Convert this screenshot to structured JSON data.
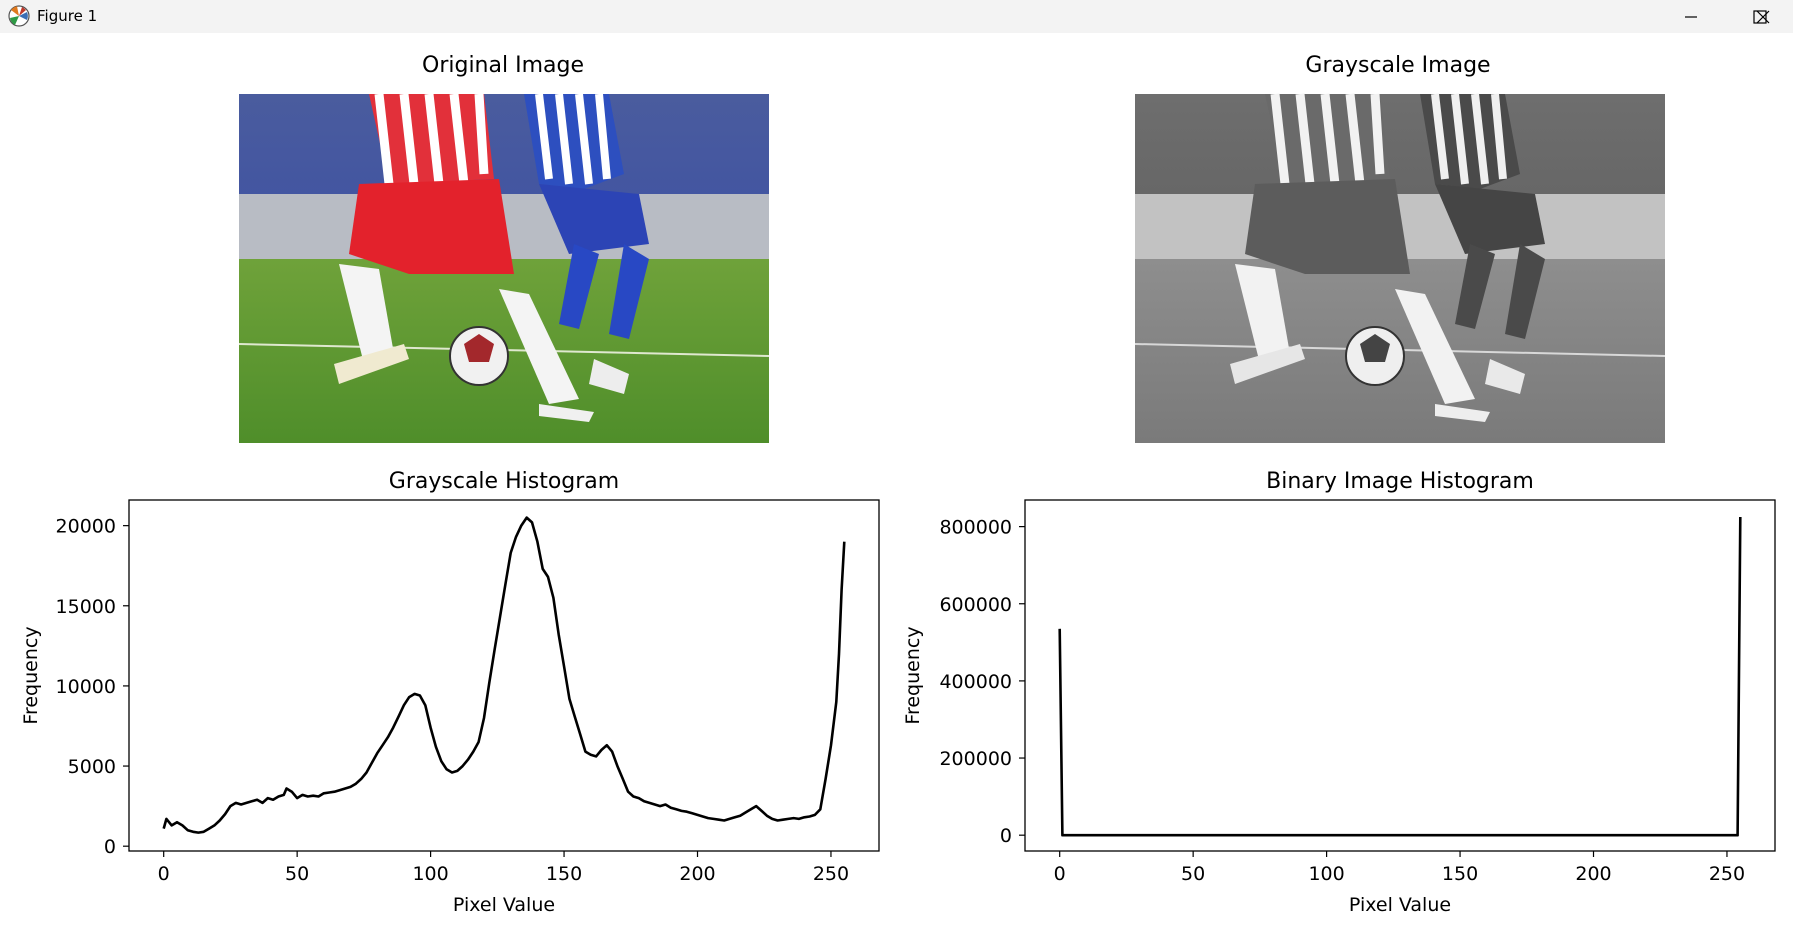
{
  "window": {
    "title": "Figure 1",
    "icons": [
      "matplotlib-logo-icon",
      "minimize-icon",
      "maximize-icon",
      "close-icon"
    ]
  },
  "images": {
    "original": {
      "title": "Original Image"
    },
    "grayscale": {
      "title": "Grayscale Image"
    }
  },
  "chart_data": [
    {
      "type": "line",
      "title": "Grayscale Histogram",
      "xlabel": "Pixel Value",
      "ylabel": "Frequency",
      "xlim": [
        -13,
        268
      ],
      "ylim": [
        -300,
        21600
      ],
      "xticks": [
        0,
        50,
        100,
        150,
        200,
        250
      ],
      "yticks": [
        0,
        5000,
        10000,
        15000,
        20000
      ],
      "grid": false,
      "series": [
        {
          "color": "#000000",
          "x": [
            0,
            1,
            3,
            5,
            7,
            9,
            11,
            13,
            15,
            17,
            19,
            21,
            23,
            25,
            27,
            29,
            31,
            33,
            35,
            37,
            39,
            41,
            43,
            45,
            46,
            48,
            50,
            52,
            54,
            56,
            58,
            60,
            62,
            64,
            66,
            68,
            70,
            72,
            74,
            76,
            78,
            80,
            82,
            84,
            86,
            88,
            90,
            92,
            94,
            96,
            98,
            100,
            102,
            104,
            106,
            108,
            110,
            112,
            114,
            116,
            118,
            120,
            122,
            124,
            126,
            128,
            130,
            132,
            134,
            136,
            138,
            140,
            142,
            144,
            146,
            148,
            150,
            152,
            154,
            156,
            158,
            160,
            162,
            164,
            166,
            168,
            170,
            172,
            174,
            176,
            178,
            180,
            182,
            184,
            186,
            188,
            190,
            192,
            194,
            196,
            198,
            200,
            202,
            204,
            206,
            208,
            210,
            212,
            214,
            216,
            218,
            220,
            222,
            224,
            226,
            228,
            230,
            232,
            234,
            236,
            238,
            240,
            242,
            244,
            246,
            248,
            250,
            252,
            253,
            254,
            255
          ],
          "y": [
            1100,
            1700,
            1300,
            1500,
            1300,
            1000,
            900,
            850,
            900,
            1100,
            1300,
            1600,
            2000,
            2500,
            2700,
            2600,
            2700,
            2800,
            2900,
            2700,
            3000,
            2900,
            3100,
            3200,
            3600,
            3400,
            3000,
            3200,
            3100,
            3150,
            3100,
            3300,
            3350,
            3400,
            3500,
            3600,
            3700,
            3900,
            4200,
            4600,
            5200,
            5800,
            6300,
            6800,
            7400,
            8100,
            8800,
            9300,
            9500,
            9400,
            8800,
            7400,
            6200,
            5300,
            4800,
            4600,
            4700,
            5000,
            5400,
            5900,
            6500,
            8000,
            10200,
            12300,
            14300,
            16300,
            18300,
            19300,
            20000,
            20500,
            20200,
            19000,
            17300,
            16800,
            15500,
            13200,
            11200,
            9200,
            8100,
            7000,
            5900,
            5700,
            5600,
            6000,
            6300,
            5900,
            5000,
            4200,
            3400,
            3100,
            3000,
            2800,
            2700,
            2600,
            2500,
            2600,
            2400,
            2300,
            2200,
            2150,
            2050,
            1950,
            1850,
            1750,
            1700,
            1650,
            1600,
            1700,
            1800,
            1900,
            2100,
            2300,
            2500,
            2200,
            1900,
            1700,
            1600,
            1650,
            1700,
            1750,
            1700,
            1800,
            1850,
            1950,
            2300,
            4200,
            6300,
            9000,
            12000,
            16000,
            19000
          ]
        }
      ]
    },
    {
      "type": "line",
      "title": "Binary Image Histogram",
      "xlabel": "Pixel Value",
      "ylabel": "Frequency",
      "xlim": [
        -13,
        268
      ],
      "ylim": [
        -41000,
        869000
      ],
      "xticks": [
        0,
        50,
        100,
        150,
        200,
        250
      ],
      "yticks": [
        0,
        200000,
        400000,
        600000,
        800000
      ],
      "grid": false,
      "series": [
        {
          "color": "#000000",
          "x": [
            0,
            1,
            254,
            255
          ],
          "y": [
            535000,
            0,
            0,
            825000
          ]
        }
      ]
    }
  ]
}
